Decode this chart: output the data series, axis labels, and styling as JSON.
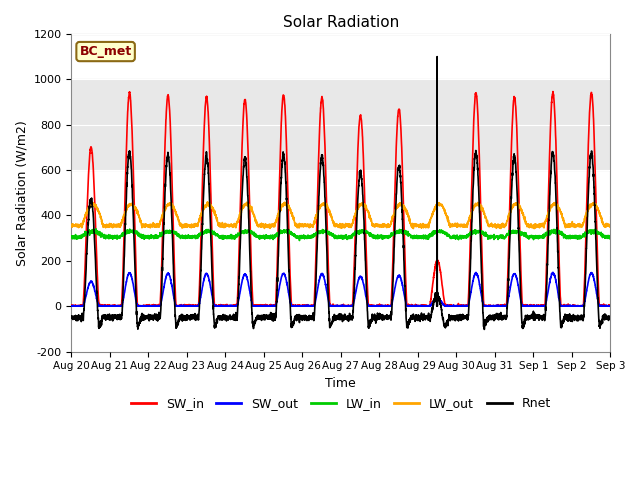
{
  "title": "Solar Radiation",
  "xlabel": "Time",
  "ylabel": "Solar Radiation (W/m2)",
  "ylim": [
    -200,
    1200
  ],
  "xlim": [
    0,
    14
  ],
  "annotation": "BC_met",
  "bg_color": "#ffffff",
  "plot_bg_color": "#ffffff",
  "shade_color": "#e8e8e8",
  "shade_ymin": 600,
  "shade_ymax": 1000,
  "grid_color": "#d0d0d0",
  "series": {
    "SW_in": {
      "color": "#ff0000",
      "lw": 1.2
    },
    "SW_out": {
      "color": "#0000ff",
      "lw": 1.2
    },
    "LW_in": {
      "color": "#00cc00",
      "lw": 1.2
    },
    "LW_out": {
      "color": "#ffa500",
      "lw": 1.2
    },
    "Rnet": {
      "color": "#000000",
      "lw": 1.2
    }
  },
  "xtick_labels": [
    "Aug 20",
    "Aug 21",
    "Aug 22",
    "Aug 23",
    "Aug 24",
    "Aug 25",
    "Aug 26",
    "Aug 27",
    "Aug 28",
    "Aug 29",
    "Aug 30",
    "Aug 31",
    "Sep 1",
    "Sep 2",
    "Sep 3"
  ],
  "xtick_positions": [
    0,
    1,
    2,
    3,
    4,
    5,
    6,
    7,
    8,
    9,
    10,
    11,
    12,
    13,
    14
  ],
  "ytick_labels": [
    "-200",
    "0",
    "200",
    "400",
    "600",
    "800",
    "1000",
    "1200"
  ],
  "ytick_positions": [
    -200,
    0,
    200,
    400,
    600,
    800,
    1000,
    1200
  ]
}
